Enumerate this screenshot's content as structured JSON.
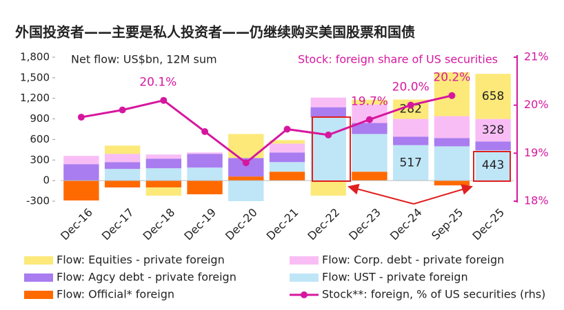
{
  "chart_data": {
    "type": "bar",
    "title": "外国投资者——主要是私人投资者——仍继续购买美国股票和国债",
    "annotations": [
      "Net flow: US$bn, 12M sum",
      "Stock: foreign share of US securities"
    ],
    "categories": [
      "Dec-16",
      "Dec-17",
      "Dec-18",
      "Dec-19",
      "Dec-20",
      "Dec-21",
      "Dec-22",
      "Dec-23",
      "Dec-24",
      "Sep-25",
      "Dec-25"
    ],
    "ylim": [
      -300,
      1800
    ],
    "yticks": [
      -300,
      0,
      300,
      600,
      900,
      {
        "value": 1200,
        "label": "1,200"
      },
      {
        "value": 1500,
        "label": "1,500"
      },
      {
        "value": 1800,
        "label": "1,800"
      }
    ],
    "y2lim": [
      18,
      21
    ],
    "y2ticks": [
      {
        "value": 18,
        "label": "18%"
      },
      {
        "value": 19,
        "label": "19%"
      },
      {
        "value": 20,
        "label": "20%"
      },
      {
        "value": 21,
        "label": "21%"
      }
    ],
    "series": [
      {
        "name": "Flow: Equities - private foreign",
        "color": "#fce97a",
        "values": [
          0,
          120,
          -120,
          0,
          350,
          50,
          -220,
          70,
          282,
          640,
          658
        ],
        "value_labels": [
          null,
          null,
          null,
          null,
          null,
          null,
          null,
          null,
          "282",
          null,
          "658"
        ]
      },
      {
        "name": "Flow: Corp. debt - private foreign",
        "color": "#f9bdf5",
        "values": [
          120,
          120,
          60,
          20,
          0,
          130,
          140,
          270,
          260,
          320,
          328
        ],
        "value_labels": [
          null,
          null,
          null,
          null,
          null,
          null,
          null,
          null,
          null,
          null,
          "328"
        ]
      },
      {
        "name": "Flow: Agcy debt - private foreign",
        "color": "#a97cf0",
        "values": [
          240,
          100,
          140,
          200,
          270,
          140,
          150,
          160,
          123,
          120,
          128
        ]
      },
      {
        "name": "Flow: UST - private foreign",
        "color": "#bfe6f7",
        "values": [
          0,
          170,
          180,
          190,
          -300,
          140,
          920,
          550,
          517,
          500,
          443
        ],
        "value_labels": [
          null,
          null,
          null,
          null,
          null,
          null,
          null,
          null,
          "517",
          null,
          "443"
        ]
      },
      {
        "name": "Flow: Official* foreign",
        "color": "#ff6a00",
        "values": [
          -290,
          -100,
          -100,
          -200,
          60,
          130,
          0,
          130,
          0,
          -70,
          0
        ]
      },
      {
        "name": "Stock**: foreign, % of US securities (rhs)",
        "color": "#d6179e",
        "type": "line",
        "axis": "y2",
        "values": [
          19.75,
          19.9,
          20.1,
          19.45,
          18.8,
          19.5,
          19.38,
          19.7,
          20.0,
          20.2,
          null
        ],
        "value_labels": [
          null,
          null,
          "20.1%",
          null,
          null,
          null,
          null,
          "19.7%",
          "20.0%",
          "20.2%",
          null
        ]
      }
    ]
  }
}
